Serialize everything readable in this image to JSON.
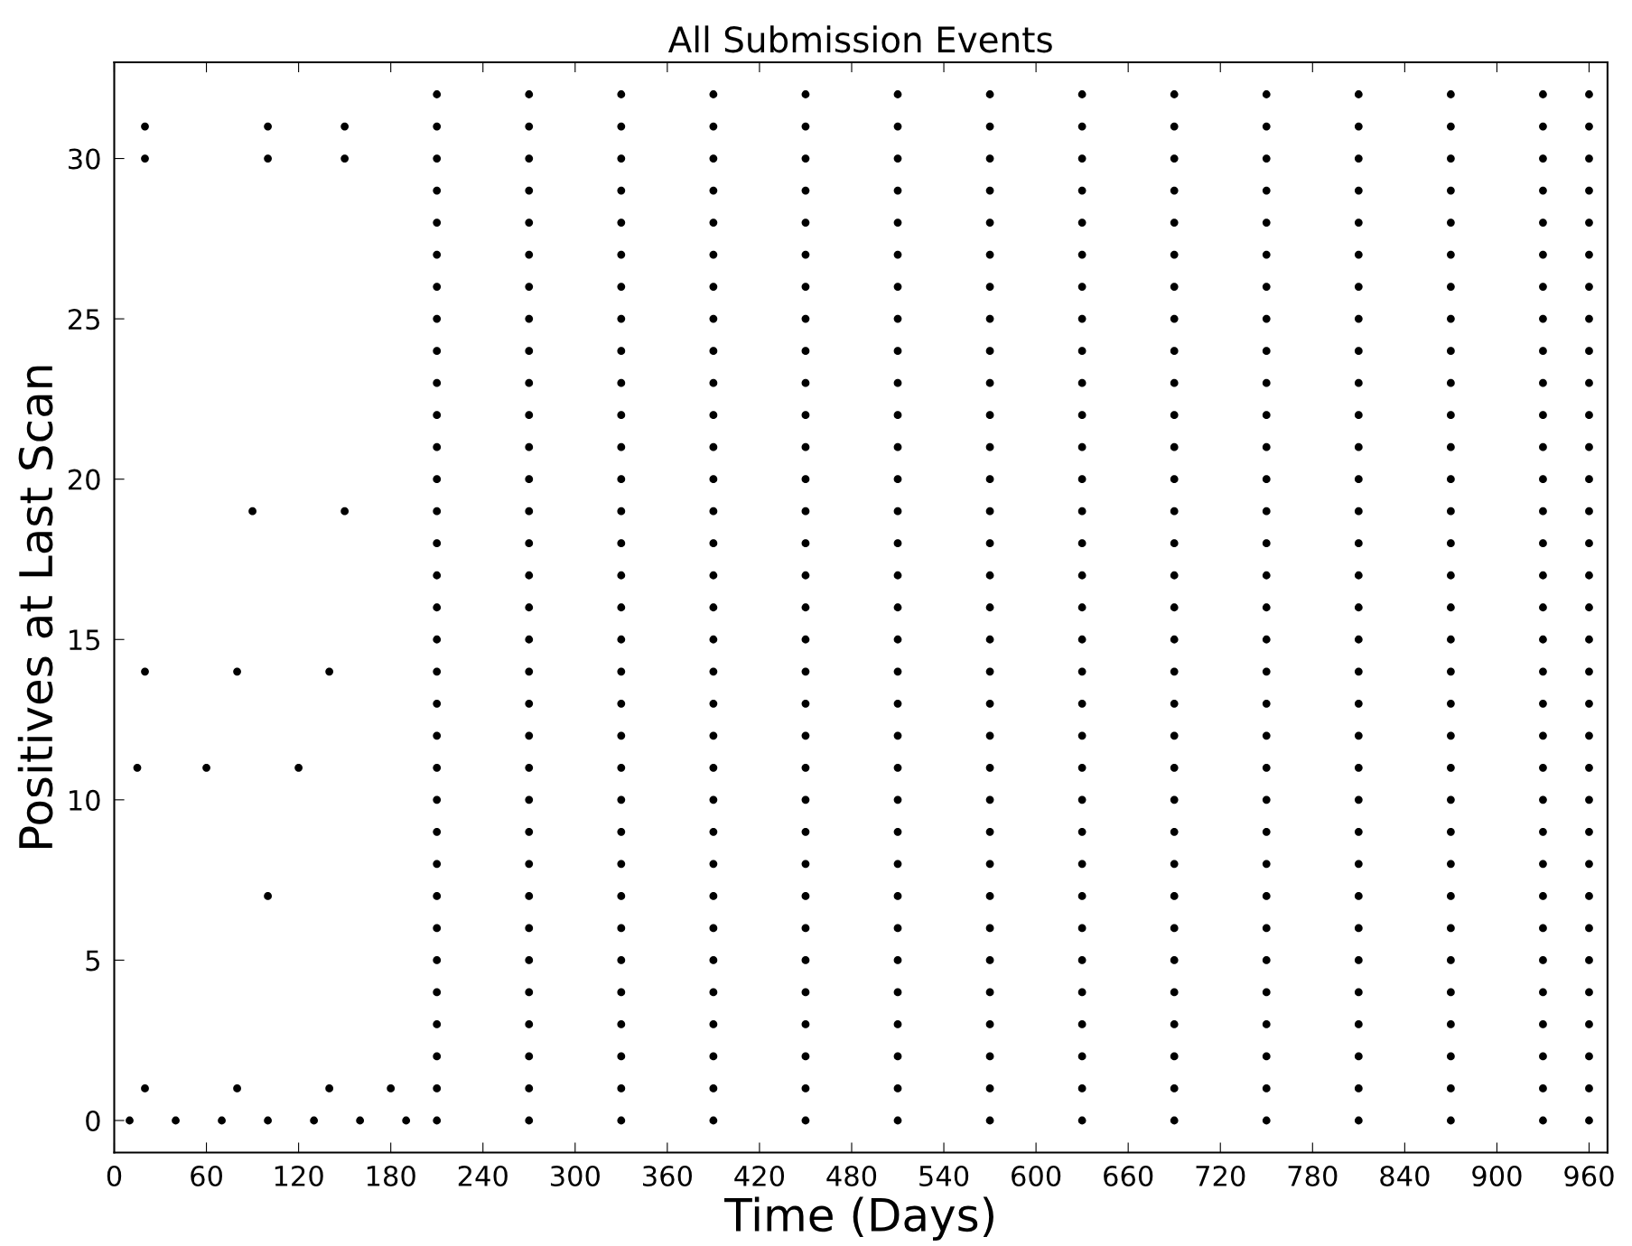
{
  "chart_data": {
    "type": "scatter",
    "title": "All Submission Events",
    "xlabel": "Time (Days)",
    "ylabel": "Positives at Last Scan",
    "xlim": [
      0,
      972
    ],
    "ylim": [
      -1,
      33
    ],
    "xticks": [
      0,
      60,
      120,
      180,
      240,
      300,
      360,
      420,
      480,
      540,
      600,
      660,
      720,
      780,
      840,
      900,
      960
    ],
    "yticks": [
      0,
      5,
      10,
      15,
      20,
      25,
      30
    ],
    "grid": false,
    "marker": "circle",
    "series": [
      {
        "color": "#000000",
        "x": [
          10,
          40,
          70,
          100,
          130,
          160,
          190,
          210,
          270,
          330,
          390,
          450,
          510,
          570,
          630,
          690,
          750,
          810,
          870,
          930,
          960
        ],
        "values": [
          0,
          0,
          0,
          0,
          0,
          0,
          0,
          0,
          0,
          0,
          0,
          0,
          0,
          0,
          0,
          0,
          0,
          0,
          0,
          0,
          0
        ]
      },
      {
        "color": "#000000",
        "x": [
          20,
          80,
          140,
          180,
          210,
          270,
          330,
          390,
          450,
          510,
          570,
          630,
          690,
          750,
          810,
          870,
          930,
          960
        ],
        "values": [
          1,
          1,
          1,
          1,
          1,
          1,
          1,
          1,
          1,
          1,
          1,
          1,
          1,
          1,
          1,
          1,
          1,
          1
        ]
      },
      {
        "color": "#000000",
        "x": [
          210,
          270,
          330,
          390,
          450,
          510,
          570,
          630,
          690,
          750,
          810,
          870,
          930,
          960
        ],
        "values": [
          2,
          2,
          2,
          2,
          2,
          2,
          2,
          2,
          2,
          2,
          2,
          2,
          2,
          2
        ]
      },
      {
        "color": "#000000",
        "x": [
          210,
          270,
          330,
          390,
          450,
          510,
          570,
          630,
          690,
          750,
          810,
          870,
          930,
          960
        ],
        "values": [
          3,
          3,
          3,
          3,
          3,
          3,
          3,
          3,
          3,
          3,
          3,
          3,
          3,
          3
        ]
      },
      {
        "color": "#000000",
        "x": [
          210,
          270,
          330,
          390,
          450,
          510,
          570,
          630,
          690,
          750,
          810,
          870,
          930,
          960
        ],
        "values": [
          4,
          4,
          4,
          4,
          4,
          4,
          4,
          4,
          4,
          4,
          4,
          4,
          4,
          4
        ]
      },
      {
        "color": "#000000",
        "x": [
          210,
          270,
          330,
          390,
          450,
          510,
          570,
          630,
          690,
          750,
          810,
          870,
          930,
          960
        ],
        "values": [
          5,
          5,
          5,
          5,
          5,
          5,
          5,
          5,
          5,
          5,
          5,
          5,
          5,
          5
        ]
      },
      {
        "color": "#000000",
        "x": [
          210,
          270,
          330,
          390,
          450,
          510,
          570,
          630,
          690,
          750,
          810,
          870,
          930,
          960
        ],
        "values": [
          6,
          6,
          6,
          6,
          6,
          6,
          6,
          6,
          6,
          6,
          6,
          6,
          6,
          6
        ]
      },
      {
        "color": "#000000",
        "x": [
          100,
          210,
          270,
          330,
          390,
          450,
          510,
          570,
          630,
          690,
          750,
          810,
          870,
          930,
          960
        ],
        "values": [
          7,
          7,
          7,
          7,
          7,
          7,
          7,
          7,
          7,
          7,
          7,
          7,
          7,
          7,
          7
        ]
      },
      {
        "color": "#000000",
        "x": [
          210,
          270,
          330,
          390,
          450,
          510,
          570,
          630,
          690,
          750,
          810,
          870,
          930,
          960
        ],
        "values": [
          8,
          8,
          8,
          8,
          8,
          8,
          8,
          8,
          8,
          8,
          8,
          8,
          8,
          8
        ]
      },
      {
        "color": "#000000",
        "x": [
          210,
          270,
          330,
          390,
          450,
          510,
          570,
          630,
          690,
          750,
          810,
          870,
          930,
          960
        ],
        "values": [
          9,
          9,
          9,
          9,
          9,
          9,
          9,
          9,
          9,
          9,
          9,
          9,
          9,
          9
        ]
      },
      {
        "color": "#000000",
        "x": [
          210,
          270,
          330,
          390,
          450,
          510,
          570,
          630,
          690,
          750,
          810,
          870,
          930,
          960
        ],
        "values": [
          10,
          10,
          10,
          10,
          10,
          10,
          10,
          10,
          10,
          10,
          10,
          10,
          10,
          10
        ]
      },
      {
        "color": "#000000",
        "x": [
          15,
          60,
          120,
          210,
          270,
          330,
          390,
          450,
          510,
          570,
          630,
          690,
          750,
          810,
          870,
          930,
          960
        ],
        "values": [
          11,
          11,
          11,
          11,
          11,
          11,
          11,
          11,
          11,
          11,
          11,
          11,
          11,
          11,
          11,
          11,
          11
        ]
      },
      {
        "color": "#000000",
        "x": [
          210,
          270,
          330,
          390,
          450,
          510,
          570,
          630,
          690,
          750,
          810,
          870,
          930,
          960
        ],
        "values": [
          12,
          12,
          12,
          12,
          12,
          12,
          12,
          12,
          12,
          12,
          12,
          12,
          12,
          12
        ]
      },
      {
        "color": "#000000",
        "x": [
          210,
          270,
          330,
          390,
          450,
          510,
          570,
          630,
          690,
          750,
          810,
          870,
          930,
          960
        ],
        "values": [
          13,
          13,
          13,
          13,
          13,
          13,
          13,
          13,
          13,
          13,
          13,
          13,
          13,
          13
        ]
      },
      {
        "color": "#000000",
        "x": [
          20,
          80,
          140,
          210,
          270,
          330,
          390,
          450,
          510,
          570,
          630,
          690,
          750,
          810,
          870,
          930,
          960
        ],
        "values": [
          14,
          14,
          14,
          14,
          14,
          14,
          14,
          14,
          14,
          14,
          14,
          14,
          14,
          14,
          14,
          14,
          14
        ]
      },
      {
        "color": "#000000",
        "x": [
          210,
          270,
          330,
          390,
          450,
          510,
          570,
          630,
          690,
          750,
          810,
          870,
          930,
          960
        ],
        "values": [
          15,
          15,
          15,
          15,
          15,
          15,
          15,
          15,
          15,
          15,
          15,
          15,
          15,
          15
        ]
      },
      {
        "color": "#000000",
        "x": [
          210,
          270,
          330,
          390,
          450,
          510,
          570,
          630,
          690,
          750,
          810,
          870,
          930,
          960
        ],
        "values": [
          16,
          16,
          16,
          16,
          16,
          16,
          16,
          16,
          16,
          16,
          16,
          16,
          16,
          16
        ]
      },
      {
        "color": "#000000",
        "x": [
          210,
          270,
          330,
          390,
          450,
          510,
          570,
          630,
          690,
          750,
          810,
          870,
          930,
          960
        ],
        "values": [
          17,
          17,
          17,
          17,
          17,
          17,
          17,
          17,
          17,
          17,
          17,
          17,
          17,
          17
        ]
      },
      {
        "color": "#000000",
        "x": [
          210,
          270,
          330,
          390,
          450,
          510,
          570,
          630,
          690,
          750,
          810,
          870,
          930,
          960
        ],
        "values": [
          18,
          18,
          18,
          18,
          18,
          18,
          18,
          18,
          18,
          18,
          18,
          18,
          18,
          18
        ]
      },
      {
        "color": "#000000",
        "x": [
          90,
          150,
          210,
          270,
          330,
          390,
          450,
          510,
          570,
          630,
          690,
          750,
          810,
          870,
          930,
          960
        ],
        "values": [
          19,
          19,
          19,
          19,
          19,
          19,
          19,
          19,
          19,
          19,
          19,
          19,
          19,
          19,
          19,
          19
        ]
      },
      {
        "color": "#000000",
        "x": [
          210,
          270,
          330,
          390,
          450,
          510,
          570,
          630,
          690,
          750,
          810,
          870,
          930,
          960
        ],
        "values": [
          20,
          20,
          20,
          20,
          20,
          20,
          20,
          20,
          20,
          20,
          20,
          20,
          20,
          20
        ]
      },
      {
        "color": "#000000",
        "x": [
          210,
          270,
          330,
          390,
          450,
          510,
          570,
          630,
          690,
          750,
          810,
          870,
          930,
          960
        ],
        "values": [
          21,
          21,
          21,
          21,
          21,
          21,
          21,
          21,
          21,
          21,
          21,
          21,
          21,
          21
        ]
      },
      {
        "color": "#000000",
        "x": [
          210,
          270,
          330,
          390,
          450,
          510,
          570,
          630,
          690,
          750,
          810,
          870,
          930,
          960
        ],
        "values": [
          22,
          22,
          22,
          22,
          22,
          22,
          22,
          22,
          22,
          22,
          22,
          22,
          22,
          22
        ]
      },
      {
        "color": "#000000",
        "x": [
          210,
          270,
          330,
          390,
          450,
          510,
          570,
          630,
          690,
          750,
          810,
          870,
          930,
          960
        ],
        "values": [
          23,
          23,
          23,
          23,
          23,
          23,
          23,
          23,
          23,
          23,
          23,
          23,
          23,
          23
        ]
      },
      {
        "color": "#000000",
        "x": [
          210,
          270,
          330,
          390,
          450,
          510,
          570,
          630,
          690,
          750,
          810,
          870,
          930,
          960
        ],
        "values": [
          24,
          24,
          24,
          24,
          24,
          24,
          24,
          24,
          24,
          24,
          24,
          24,
          24,
          24
        ]
      },
      {
        "color": "#000000",
        "x": [
          210,
          270,
          330,
          390,
          450,
          510,
          570,
          630,
          690,
          750,
          810,
          870,
          930,
          960
        ],
        "values": [
          25,
          25,
          25,
          25,
          25,
          25,
          25,
          25,
          25,
          25,
          25,
          25,
          25,
          25
        ]
      },
      {
        "color": "#000000",
        "x": [
          210,
          270,
          330,
          390,
          450,
          510,
          570,
          630,
          690,
          750,
          810,
          870,
          930,
          960
        ],
        "values": [
          26,
          26,
          26,
          26,
          26,
          26,
          26,
          26,
          26,
          26,
          26,
          26,
          26,
          26
        ]
      },
      {
        "color": "#000000",
        "x": [
          210,
          270,
          330,
          390,
          450,
          510,
          570,
          630,
          690,
          750,
          810,
          870,
          930,
          960
        ],
        "values": [
          27,
          27,
          27,
          27,
          27,
          27,
          27,
          27,
          27,
          27,
          27,
          27,
          27,
          27
        ]
      },
      {
        "color": "#000000",
        "x": [
          210,
          270,
          330,
          390,
          450,
          510,
          570,
          630,
          690,
          750,
          810,
          870,
          930,
          960
        ],
        "values": [
          28,
          28,
          28,
          28,
          28,
          28,
          28,
          28,
          28,
          28,
          28,
          28,
          28,
          28
        ]
      },
      {
        "color": "#000000",
        "x": [
          210,
          270,
          330,
          390,
          450,
          510,
          570,
          630,
          690,
          750,
          810,
          870,
          930,
          960
        ],
        "values": [
          29,
          29,
          29,
          29,
          29,
          29,
          29,
          29,
          29,
          29,
          29,
          29,
          29,
          29
        ]
      },
      {
        "color": "#000000",
        "x": [
          20,
          100,
          150,
          210,
          270,
          330,
          390,
          450,
          510,
          570,
          630,
          690,
          750,
          810,
          870,
          930,
          960
        ],
        "values": [
          30,
          30,
          30,
          30,
          30,
          30,
          30,
          30,
          30,
          30,
          30,
          30,
          30,
          30,
          30,
          30,
          30
        ]
      },
      {
        "color": "#000000",
        "x": [
          20,
          100,
          150,
          210,
          270,
          330,
          390,
          450,
          510,
          570,
          630,
          690,
          750,
          810,
          870,
          930,
          960
        ],
        "values": [
          31,
          31,
          31,
          31,
          31,
          31,
          31,
          31,
          31,
          31,
          31,
          31,
          31,
          31,
          31,
          31,
          31
        ]
      },
      {
        "color": "#000000",
        "x": [
          210,
          270,
          330,
          390,
          450,
          510,
          570,
          630,
          690,
          750,
          810,
          870,
          930,
          960
        ],
        "values": [
          32,
          32,
          32,
          32,
          32,
          32,
          32,
          32,
          32,
          32,
          32,
          32,
          32,
          32
        ]
      }
    ]
  }
}
